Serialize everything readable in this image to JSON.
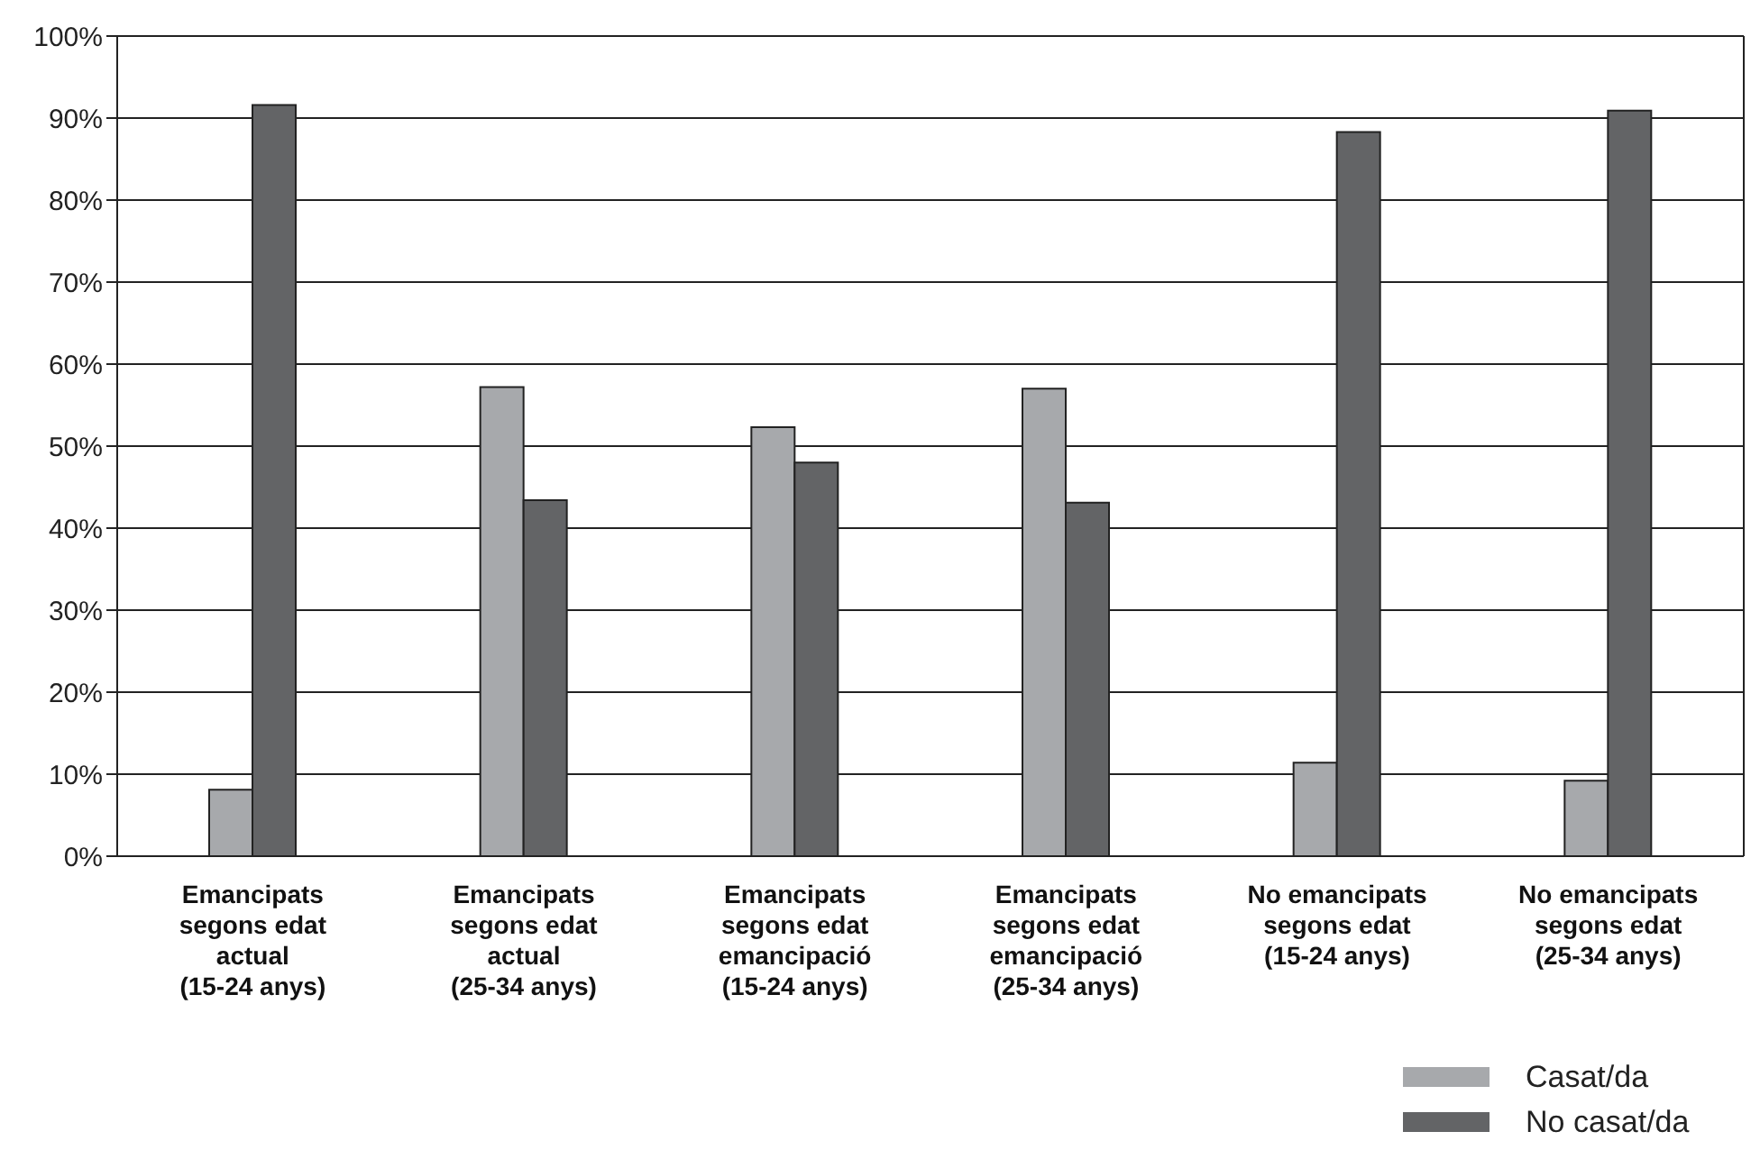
{
  "chart_data": {
    "type": "bar",
    "categories": [
      "Emancipats\nsegons edat\nactual\n(15-24 anys)",
      "Emancipats\nsegons edat\nactual\n(25-34 anys)",
      "Emancipats\nsegons edat\nemancipació\n(15-24 anys)",
      "Emancipats\nsegons edat\nemancipació\n(25-34 anys)",
      "No emancipats\nsegons edat\n(15-24 anys)",
      "No emancipats\nsegons edat\n(25-34 anys)"
    ],
    "series": [
      {
        "name": "Casat/da",
        "color": "#a7a9ac",
        "values": [
          8.1,
          57.2,
          52.3,
          57.0,
          11.4,
          9.2
        ]
      },
      {
        "name": "No casat/da",
        "color": "#636466",
        "values": [
          91.6,
          43.4,
          48.0,
          43.1,
          88.3,
          90.9
        ]
      }
    ],
    "ylim": [
      0,
      100
    ],
    "yticks": [
      {
        "value": 0,
        "label": "0%"
      },
      {
        "value": 10,
        "label": "10%"
      },
      {
        "value": 20,
        "label": "20%"
      },
      {
        "value": 30,
        "label": "30%"
      },
      {
        "value": 40,
        "label": "40%"
      },
      {
        "value": 50,
        "label": "50%"
      },
      {
        "value": 60,
        "label": "60%"
      },
      {
        "value": 70,
        "label": "70%"
      },
      {
        "value": 80,
        "label": "80%"
      },
      {
        "value": 90,
        "label": "90%"
      },
      {
        "value": 100,
        "label": "100%"
      }
    ],
    "grid": "y",
    "legend": "bottom right"
  }
}
